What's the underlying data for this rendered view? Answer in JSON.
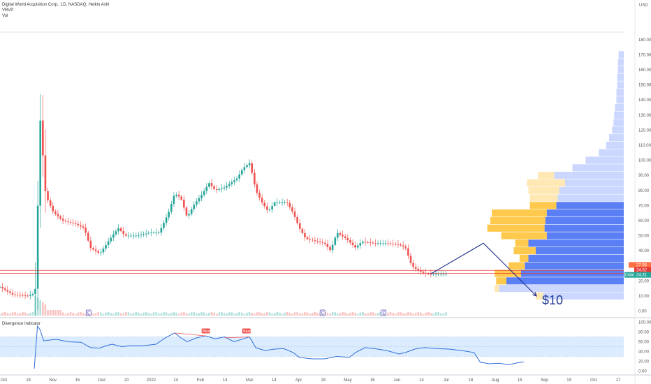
{
  "header": {
    "title": "Digital World Acquisition Corp., 1D, NASDAQ, Heikin Ashi",
    "indicators": [
      "VRVP",
      "Vol"
    ],
    "currency": "USD"
  },
  "colors": {
    "bull": "#26a69a",
    "bear": "#ef5350",
    "vp_up": "#5b7ff5",
    "vp_down": "#ffc94d",
    "va_light_blue": "#c5d3ff",
    "va_light_yellow": "#ffe8b3",
    "hline": "#e53935",
    "arrow": "#1f2d88",
    "osc_line": "#2f6fd8",
    "osc_band": "#dcecff"
  },
  "chart_data": [
    {
      "type": "candlestick",
      "title": "Digital World Acquisition Corp., 1D, NASDAQ, Heikin Ashi",
      "x_ticks": [
        "Oct",
        "18",
        "Nov",
        "15",
        "Dec",
        "20",
        "2022",
        "14",
        "Feb",
        "14",
        "Mar",
        "14",
        "Apr",
        "18",
        "May",
        "16",
        "Jun",
        "14",
        "Jul",
        "18",
        "Aug",
        "15",
        "Sep",
        "19",
        "Oct",
        "17"
      ],
      "y_ticks": [
        0,
        10,
        20,
        30,
        40,
        50,
        60,
        70,
        80,
        90,
        100,
        110,
        120,
        130,
        140,
        150,
        160,
        170,
        180
      ],
      "ylim": [
        -3,
        185
      ],
      "price_labels": [
        {
          "label": "",
          "value": "27.95",
          "color": "#ff7043"
        },
        {
          "label": "",
          "value": "24.52",
          "color": "#e53935"
        },
        {
          "label": "DWAC",
          "value": "24.31",
          "color": "#26a69a"
        }
      ],
      "horizontal_lines": [
        27,
        25
      ],
      "earnings_markers": [
        "E",
        "E",
        "E"
      ],
      "annotation": {
        "text": "$10",
        "path": [
          [
            0.69,
            24.5
          ],
          [
            0.775,
            45
          ],
          [
            0.86,
            10
          ]
        ]
      },
      "anchors": [
        [
          0,
          16
        ],
        [
          0.02,
          11
        ],
        [
          0.045,
          10
        ],
        [
          0.056,
          12
        ],
        [
          0.058,
          22
        ],
        [
          0.06,
          60
        ],
        [
          0.063,
          110
        ],
        [
          0.066,
          140
        ],
        [
          0.07,
          85
        ],
        [
          0.075,
          75
        ],
        [
          0.085,
          66
        ],
        [
          0.1,
          60
        ],
        [
          0.12,
          58
        ],
        [
          0.135,
          55
        ],
        [
          0.145,
          42
        ],
        [
          0.16,
          38
        ],
        [
          0.17,
          44
        ],
        [
          0.18,
          50
        ],
        [
          0.19,
          55
        ],
        [
          0.2,
          50
        ],
        [
          0.22,
          50
        ],
        [
          0.24,
          52
        ],
        [
          0.255,
          52
        ],
        [
          0.27,
          65
        ],
        [
          0.28,
          78
        ],
        [
          0.29,
          75
        ],
        [
          0.3,
          62
        ],
        [
          0.31,
          70
        ],
        [
          0.325,
          78
        ],
        [
          0.335,
          85
        ],
        [
          0.345,
          80
        ],
        [
          0.36,
          82
        ],
        [
          0.38,
          88
        ],
        [
          0.39,
          95
        ],
        [
          0.4,
          98
        ],
        [
          0.405,
          90
        ],
        [
          0.41,
          80
        ],
        [
          0.42,
          72
        ],
        [
          0.43,
          66
        ],
        [
          0.44,
          72
        ],
        [
          0.46,
          72
        ],
        [
          0.47,
          65
        ],
        [
          0.48,
          55
        ],
        [
          0.49,
          48
        ],
        [
          0.51,
          46
        ],
        [
          0.52,
          45
        ],
        [
          0.53,
          40
        ],
        [
          0.54,
          52
        ],
        [
          0.555,
          48
        ],
        [
          0.57,
          42
        ],
        [
          0.58,
          46
        ],
        [
          0.6,
          45
        ],
        [
          0.62,
          45
        ],
        [
          0.64,
          44
        ],
        [
          0.65,
          42
        ],
        [
          0.66,
          30
        ],
        [
          0.67,
          27
        ],
        [
          0.68,
          25
        ],
        [
          0.69,
          24.5
        ],
        [
          0.715,
          24.5
        ]
      ],
      "volume_profile": [
        {
          "price": 10,
          "up": 110,
          "down": 10
        },
        {
          "price": 15,
          "up": 170,
          "down": 6
        },
        {
          "price": 20,
          "up": 160,
          "down": 14
        },
        {
          "price": 25,
          "up": 140,
          "down": 36
        },
        {
          "price": 30,
          "up": 135,
          "down": 22
        },
        {
          "price": 35,
          "up": 130,
          "down": 12
        },
        {
          "price": 40,
          "up": 120,
          "down": 30
        },
        {
          "price": 45,
          "up": 130,
          "down": 18
        },
        {
          "price": 50,
          "up": 105,
          "down": 62
        },
        {
          "price": 55,
          "up": 108,
          "down": 78
        },
        {
          "price": 60,
          "up": 107,
          "down": 75
        },
        {
          "price": 65,
          "up": 105,
          "down": 75
        },
        {
          "price": 70,
          "up": 92,
          "down": 36
        },
        {
          "price": 75,
          "up": 90,
          "down": 38
        },
        {
          "price": 80,
          "up": 88,
          "down": 42
        },
        {
          "price": 85,
          "up": 80,
          "down": 52
        },
        {
          "price": 90,
          "up": 95,
          "down": 22
        },
        {
          "price": 95,
          "up": 70,
          "down": 0
        },
        {
          "price": 100,
          "up": 52,
          "down": 0
        },
        {
          "price": 105,
          "up": 34,
          "down": 0
        },
        {
          "price": 110,
          "up": 24,
          "down": 0
        },
        {
          "price": 115,
          "up": 20,
          "down": 0
        },
        {
          "price": 120,
          "up": 16,
          "down": 0
        },
        {
          "price": 125,
          "up": 14,
          "down": 0
        },
        {
          "price": 130,
          "up": 13,
          "down": 0
        },
        {
          "price": 135,
          "up": 12,
          "down": 0
        },
        {
          "price": 140,
          "up": 10,
          "down": 0
        },
        {
          "price": 145,
          "up": 10,
          "down": 0
        },
        {
          "price": 150,
          "up": 9,
          "down": 0
        },
        {
          "price": 155,
          "up": 9,
          "down": 0
        },
        {
          "price": 160,
          "up": 8,
          "down": 0
        },
        {
          "price": 165,
          "up": 8,
          "down": 0
        },
        {
          "price": 170,
          "up": 7,
          "down": 0
        }
      ]
    },
    {
      "type": "line",
      "title": "Divergence Indicator",
      "y_ticks": [
        0,
        20,
        40,
        60,
        80,
        100
      ],
      "ylim": [
        -5,
        105
      ],
      "band": [
        30,
        70
      ],
      "labels": [
        "Bear",
        "Bear"
      ],
      "anchors": [
        [
          0.055,
          5
        ],
        [
          0.06,
          92
        ],
        [
          0.064,
          85
        ],
        [
          0.07,
          62
        ],
        [
          0.09,
          65
        ],
        [
          0.11,
          60
        ],
        [
          0.13,
          59
        ],
        [
          0.145,
          48
        ],
        [
          0.16,
          47
        ],
        [
          0.17,
          52
        ],
        [
          0.18,
          55
        ],
        [
          0.195,
          50
        ],
        [
          0.21,
          52
        ],
        [
          0.23,
          52
        ],
        [
          0.25,
          55
        ],
        [
          0.265,
          68
        ],
        [
          0.28,
          78
        ],
        [
          0.29,
          68
        ],
        [
          0.3,
          60
        ],
        [
          0.315,
          68
        ],
        [
          0.33,
          72
        ],
        [
          0.345,
          66
        ],
        [
          0.36,
          70
        ],
        [
          0.375,
          60
        ],
        [
          0.39,
          66
        ],
        [
          0.4,
          70
        ],
        [
          0.41,
          48
        ],
        [
          0.425,
          42
        ],
        [
          0.44,
          45
        ],
        [
          0.455,
          46
        ],
        [
          0.47,
          38
        ],
        [
          0.48,
          28
        ],
        [
          0.5,
          25
        ],
        [
          0.52,
          25
        ],
        [
          0.54,
          30
        ],
        [
          0.56,
          28
        ],
        [
          0.57,
          38
        ],
        [
          0.585,
          48
        ],
        [
          0.6,
          46
        ],
        [
          0.62,
          42
        ],
        [
          0.64,
          35
        ],
        [
          0.65,
          38
        ],
        [
          0.665,
          45
        ],
        [
          0.68,
          48
        ],
        [
          0.7,
          46
        ],
        [
          0.72,
          45
        ],
        [
          0.74,
          42
        ],
        [
          0.76,
          38
        ],
        [
          0.77,
          18
        ],
        [
          0.785,
          15
        ],
        [
          0.8,
          16
        ],
        [
          0.815,
          13
        ],
        [
          0.83,
          17
        ],
        [
          0.84,
          19
        ]
      ]
    }
  ]
}
